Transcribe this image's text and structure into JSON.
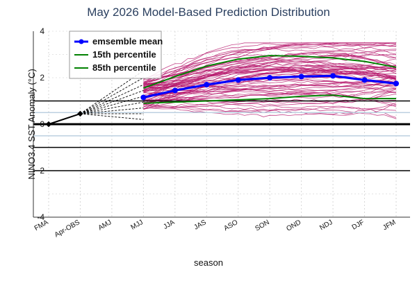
{
  "chart_data": {
    "type": "line",
    "title": "May 2026 Model-Based Prediction Distribution",
    "xlabel": "season",
    "ylabel": "NINO3.4 SST Anomaly (°C)",
    "ylim": [
      -4,
      4
    ],
    "yticks": [
      4,
      2,
      0,
      2,
      -4
    ],
    "categories": [
      "FMA",
      "Apr-OBS",
      "AMJ",
      "MJJ",
      "JJA",
      "JAS",
      "ASO",
      "SON",
      "OND",
      "NDJ",
      "DJF",
      "JFM"
    ],
    "reference_lines": {
      "black": [
        1.0,
        0.0,
        -1.0,
        -2.0
      ],
      "lightblue": [
        0.5,
        -0.5
      ]
    },
    "observed": {
      "x": [
        "FMA",
        "Apr-OBS"
      ],
      "y": [
        0.0,
        0.45
      ]
    },
    "spread": {
      "x_start": "MJJ",
      "x_end": "JFM",
      "min": 0.2,
      "max": 3.5
    },
    "series": [
      {
        "name": "emsemble mean",
        "color": "#0000ff",
        "x": [
          "MJJ",
          "JJA",
          "JAS",
          "ASO",
          "SON",
          "OND",
          "NDJ",
          "DJF",
          "JFM"
        ],
        "values": [
          1.15,
          1.45,
          1.7,
          1.9,
          2.0,
          2.05,
          2.08,
          1.9,
          1.75
        ]
      },
      {
        "name": "15th percentile",
        "color": "#008000",
        "x": [
          "MJJ",
          "JJA",
          "JAS",
          "ASO",
          "SON",
          "OND",
          "NDJ",
          "DJF",
          "JFM"
        ],
        "values": [
          0.9,
          0.95,
          1.0,
          1.05,
          1.1,
          1.2,
          1.25,
          1.1,
          1.1
        ]
      },
      {
        "name": "85th percentile",
        "color": "#008000",
        "x": [
          "MJJ",
          "JJA",
          "JAS",
          "ASO",
          "SON",
          "OND",
          "NDJ",
          "DJF",
          "JFM"
        ],
        "values": [
          1.55,
          2.05,
          2.5,
          2.8,
          2.95,
          2.92,
          2.85,
          2.7,
          2.45
        ]
      }
    ],
    "member_color": "#b5176b",
    "legend_position": "top-left",
    "grid": true
  }
}
